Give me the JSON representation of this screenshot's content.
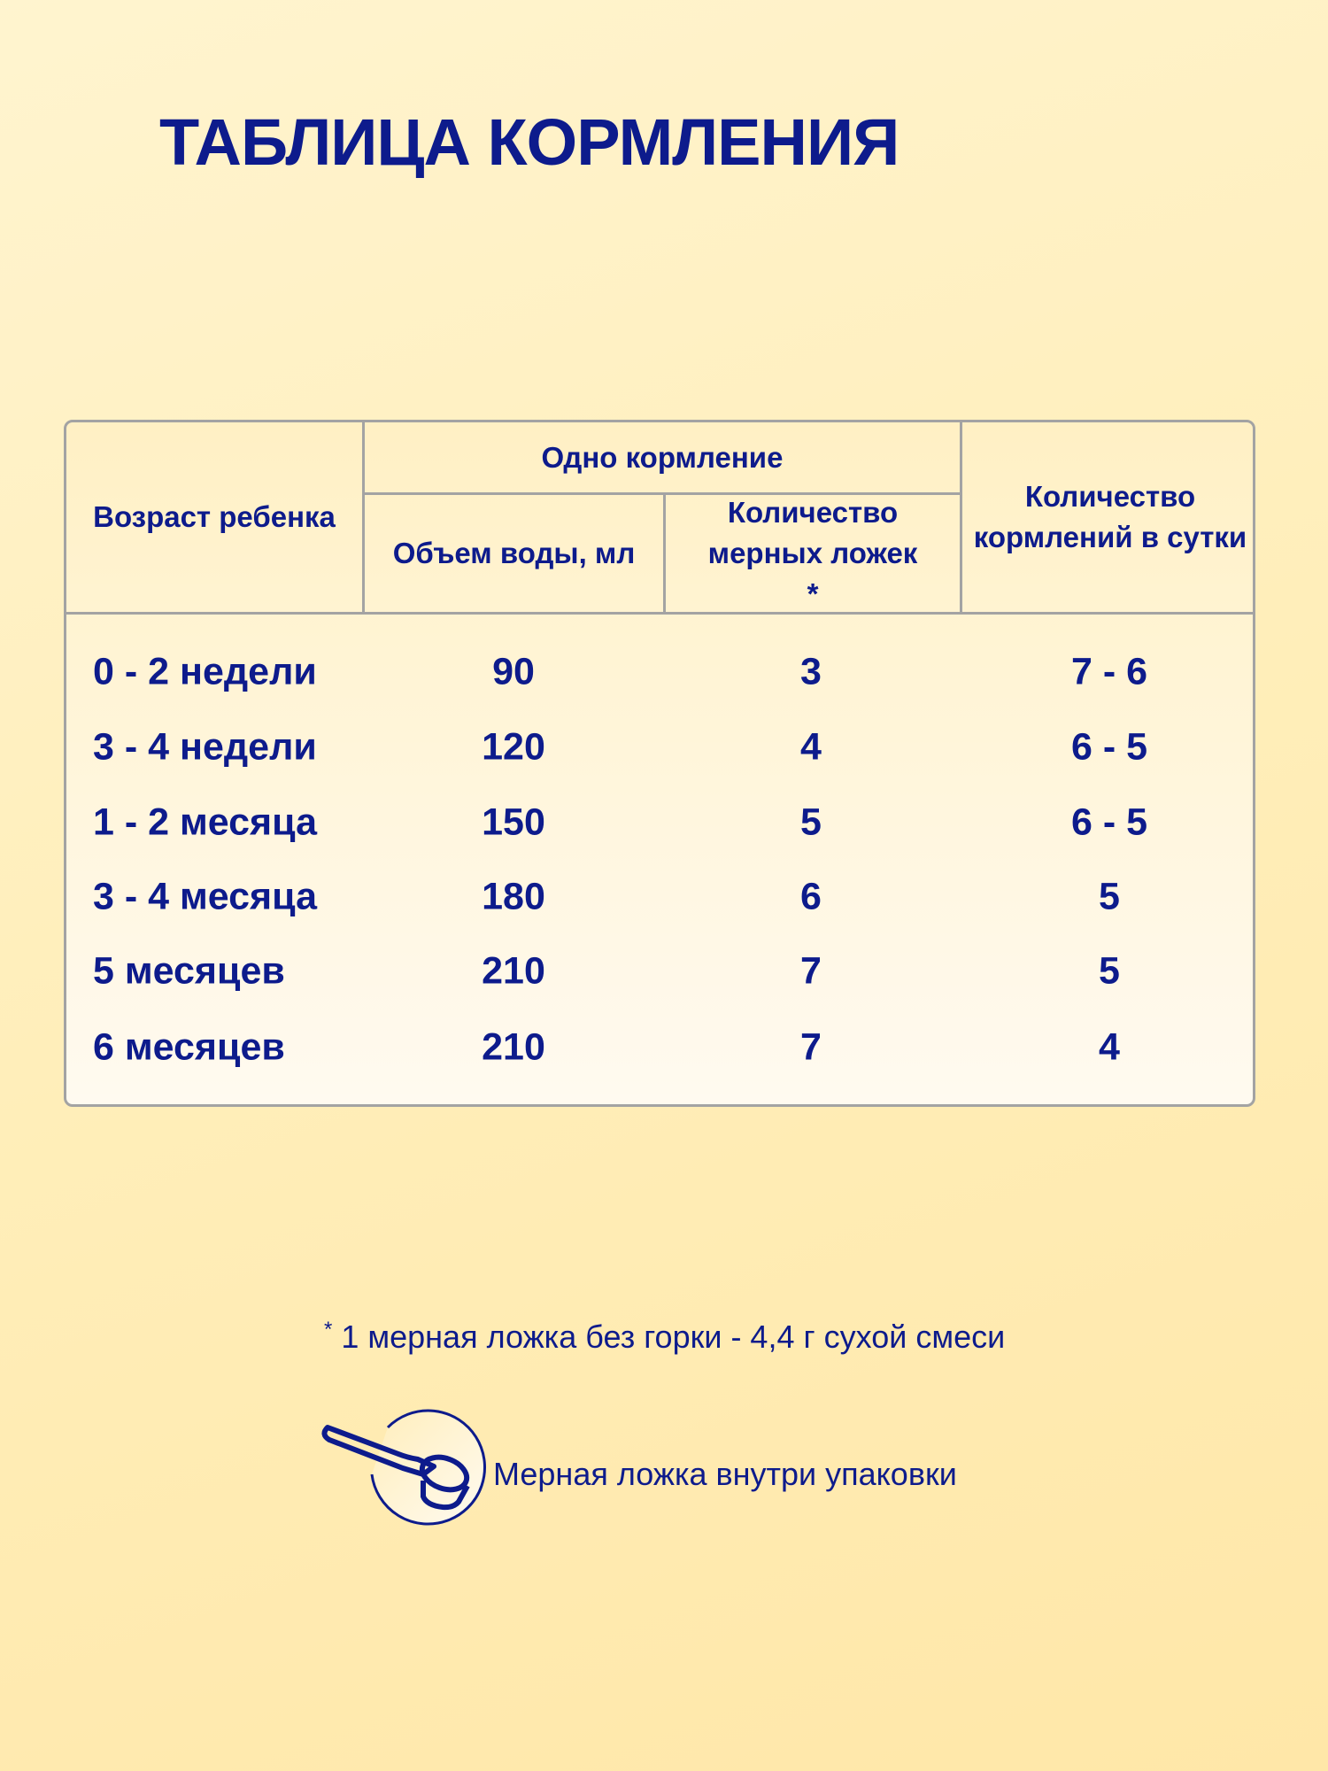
{
  "title": "ТАБЛИЦА КОРМЛЕНИЯ",
  "table": {
    "headers": {
      "age": "Возраст ребенка",
      "single_feeding": "Одно кормление",
      "water_volume": "Объем воды, мл",
      "spoons": "Количество мерных ложек *",
      "feedings_per_day": "Количество кормлений в сутки"
    },
    "rows": [
      [
        "0 - 2 недели",
        "90",
        "3",
        "7 - 6"
      ],
      [
        "3 - 4 недели",
        "120",
        "4",
        "6 - 5"
      ],
      [
        "1 - 2 месяца",
        "150",
        "5",
        "6 - 5"
      ],
      [
        "3 - 4 месяца",
        "180",
        "6",
        "5"
      ],
      [
        "5 месяцев",
        "210",
        "7",
        "5"
      ],
      [
        "6 месяцев",
        "210",
        "7",
        "4"
      ]
    ]
  },
  "footnote": {
    "mark": "*",
    "text": "1 мерная ложка без горки - 4,4 г сухой смеси"
  },
  "spoon_note": {
    "icon": "measuring-spoon-icon",
    "text": "Мерная ложка внутри упаковки"
  },
  "colors": {
    "text": "#0d1b8c",
    "border": "#a3a3a3"
  }
}
